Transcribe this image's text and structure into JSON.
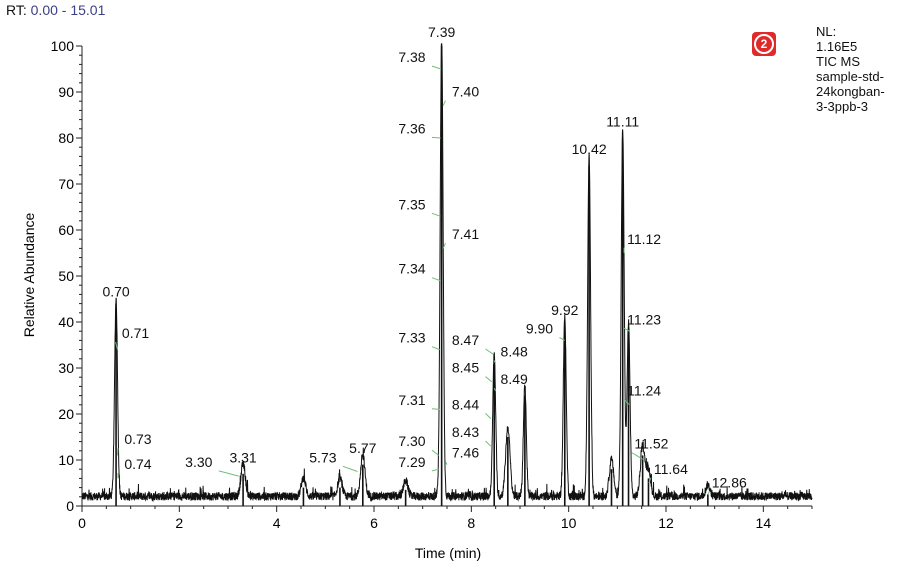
{
  "header": {
    "rt_key": "RT:",
    "rt_value": "0.00 - 15.01"
  },
  "badge": {
    "label": "2",
    "color": "#e02a2a"
  },
  "info": {
    "lines": [
      "NL:",
      "1.16E5",
      "TIC  MS",
      "sample-std-",
      "24kongban-",
      "3-3ppb-3"
    ]
  },
  "colors": {
    "trace": "#111111",
    "callout": "#6fbf7a",
    "rt_value": "#3b3f86"
  },
  "chart_data": {
    "type": "line",
    "xlabel": "Time (min)",
    "ylabel": "Relative Abundance",
    "xlim": [
      0,
      15
    ],
    "ylim": [
      0,
      100
    ],
    "xticks": [
      0,
      2,
      4,
      6,
      8,
      10,
      12,
      14
    ],
    "yticks": [
      0,
      10,
      20,
      30,
      40,
      50,
      60,
      70,
      80,
      90,
      100
    ],
    "grid": false,
    "peaks": [
      {
        "x": 0.7,
        "y": 43
      },
      {
        "x": 3.31,
        "y": 7
      },
      {
        "x": 4.55,
        "y": 4
      },
      {
        "x": 5.3,
        "y": 4
      },
      {
        "x": 5.77,
        "y": 9
      },
      {
        "x": 6.65,
        "y": 3.5
      },
      {
        "x": 7.39,
        "y": 100
      },
      {
        "x": 8.47,
        "y": 31
      },
      {
        "x": 8.75,
        "y": 15
      },
      {
        "x": 9.1,
        "y": 24
      },
      {
        "x": 9.92,
        "y": 39
      },
      {
        "x": 10.42,
        "y": 74
      },
      {
        "x": 10.88,
        "y": 8
      },
      {
        "x": 11.11,
        "y": 80
      },
      {
        "x": 11.23,
        "y": 38
      },
      {
        "x": 11.52,
        "y": 11
      },
      {
        "x": 11.64,
        "y": 6
      },
      {
        "x": 12.86,
        "y": 2.5
      }
    ],
    "annotations": [
      {
        "text": "0.70",
        "x": 0.7,
        "y": 43,
        "lx": 0.7,
        "ly": 45.5
      },
      {
        "text": "0.71",
        "x": 0.73,
        "y": 34,
        "lx": 1.1,
        "ly": 36.5
      },
      {
        "text": "0.73",
        "x": 0.73,
        "y": 11,
        "lx": 1.15,
        "ly": 13.5
      },
      {
        "text": "0.74",
        "x": 0.74,
        "y": 6,
        "lx": 1.15,
        "ly": 8
      },
      {
        "text": "3.30",
        "x": 3.22,
        "y": 6.5,
        "lx": 2.4,
        "ly": 8.5
      },
      {
        "text": "3.31",
        "x": 3.31,
        "y": 7,
        "lx": 3.31,
        "ly": 9.5
      },
      {
        "text": "5.73",
        "x": 5.66,
        "y": 7.5,
        "lx": 4.95,
        "ly": 9.5
      },
      {
        "text": "5.77",
        "x": 5.77,
        "y": 9,
        "lx": 5.77,
        "ly": 11.5
      },
      {
        "text": "7.29",
        "x": 7.33,
        "y": 8,
        "lx": 6.78,
        "ly": 8.5
      },
      {
        "text": "7.30",
        "x": 7.33,
        "y": 11,
        "lx": 6.78,
        "ly": 13
      },
      {
        "text": "7.31",
        "x": 7.35,
        "y": 21,
        "lx": 6.78,
        "ly": 22
      },
      {
        "text": "7.33",
        "x": 7.35,
        "y": 34,
        "lx": 6.78,
        "ly": 35.5
      },
      {
        "text": "7.34",
        "x": 7.36,
        "y": 49,
        "lx": 6.78,
        "ly": 50.5
      },
      {
        "text": "7.35",
        "x": 7.36,
        "y": 63,
        "lx": 6.78,
        "ly": 64.5
      },
      {
        "text": "7.36",
        "x": 7.37,
        "y": 80,
        "lx": 6.78,
        "ly": 81
      },
      {
        "text": "7.38",
        "x": 7.38,
        "y": 95,
        "lx": 6.78,
        "ly": 96.5
      },
      {
        "text": "7.39",
        "x": 7.39,
        "y": 100,
        "lx": 7.39,
        "ly": 102
      },
      {
        "text": "7.40",
        "x": 7.42,
        "y": 87,
        "lx": 7.88,
        "ly": 89
      },
      {
        "text": "7.41",
        "x": 7.42,
        "y": 56,
        "lx": 7.88,
        "ly": 58
      },
      {
        "text": "7.46",
        "x": 7.5,
        "y": 9,
        "lx": 7.88,
        "ly": 10.5
      },
      {
        "text": "8.43",
        "x": 8.4,
        "y": 13,
        "lx": 7.88,
        "ly": 15
      },
      {
        "text": "8.44",
        "x": 8.4,
        "y": 19,
        "lx": 7.88,
        "ly": 21
      },
      {
        "text": "8.45",
        "x": 8.42,
        "y": 27,
        "lx": 7.88,
        "ly": 29
      },
      {
        "text": "8.47",
        "x": 8.45,
        "y": 33,
        "lx": 7.88,
        "ly": 35
      },
      {
        "text": "8.48",
        "x": 8.5,
        "y": 31,
        "lx": 8.88,
        "ly": 32.5
      },
      {
        "text": "8.49",
        "x": 8.5,
        "y": 25,
        "lx": 8.88,
        "ly": 26.5
      },
      {
        "text": "9.90",
        "x": 9.92,
        "y": 36,
        "lx": 9.4,
        "ly": 37.5
      },
      {
        "text": "9.92",
        "x": 9.92,
        "y": 39,
        "lx": 9.92,
        "ly": 41.5
      },
      {
        "text": "10.42",
        "x": 10.42,
        "y": 74,
        "lx": 10.42,
        "ly": 76.5
      },
      {
        "text": "11.11",
        "x": 11.11,
        "y": 80,
        "lx": 11.11,
        "ly": 82.5
      },
      {
        "text": "11.12",
        "x": 11.14,
        "y": 55,
        "lx": 11.55,
        "ly": 57
      },
      {
        "text": "11.23",
        "x": 11.25,
        "y": 38,
        "lx": 11.55,
        "ly": 39.5
      },
      {
        "text": "11.24",
        "x": 11.25,
        "y": 22,
        "lx": 11.55,
        "ly": 24
      },
      {
        "text": "11.52",
        "x": 11.55,
        "y": 10,
        "lx": 11.7,
        "ly": 12.5
      },
      {
        "text": "11.64",
        "x": 11.65,
        "y": 5,
        "lx": 12.1,
        "ly": 7
      },
      {
        "text": "12.86",
        "x": 12.86,
        "y": 2.5,
        "lx": 13.3,
        "ly": 4
      }
    ]
  }
}
